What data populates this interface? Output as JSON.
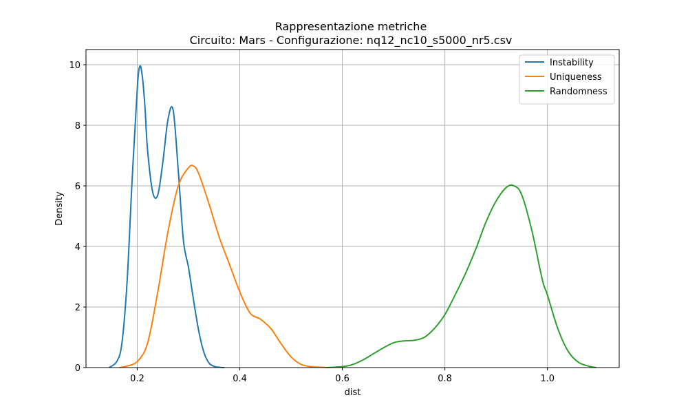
{
  "chart_data": {
    "type": "line",
    "title": "Rappresentazione metriche",
    "subtitle": "Circuito: Mars - Configurazione: nq12_nc10_s5000_nr5.csv",
    "xlabel": "dist",
    "ylabel": "Density",
    "xlim": [
      0.1,
      1.14
    ],
    "ylim": [
      0,
      10.5
    ],
    "xticks": [
      0.2,
      0.4,
      0.6,
      0.8,
      1.0
    ],
    "xtick_labels": [
      "0.2",
      "0.4",
      "0.6",
      "0.8",
      "1.0"
    ],
    "yticks": [
      0,
      2,
      4,
      6,
      8,
      10
    ],
    "ytick_labels": [
      "0",
      "2",
      "4",
      "6",
      "8",
      "10"
    ],
    "grid": true,
    "legend_position": "top-right",
    "series": [
      {
        "name": "Instability",
        "color": "#1f77b4",
        "x": [
          0.145,
          0.16,
          0.17,
          0.18,
          0.19,
          0.2,
          0.205,
          0.21,
          0.215,
          0.22,
          0.23,
          0.24,
          0.25,
          0.26,
          0.27,
          0.28,
          0.29,
          0.3,
          0.31,
          0.32,
          0.33,
          0.34,
          0.35,
          0.36,
          0.37
        ],
        "y": [
          0.0,
          0.2,
          0.8,
          2.8,
          6.2,
          9.2,
          9.95,
          9.6,
          8.6,
          7.2,
          5.8,
          5.7,
          6.8,
          8.2,
          8.5,
          6.5,
          4.2,
          3.3,
          2.2,
          1.2,
          0.5,
          0.15,
          0.04,
          0.01,
          0.0
        ]
      },
      {
        "name": "Uniqueness",
        "color": "#ff7f0e",
        "x": [
          0.165,
          0.18,
          0.2,
          0.22,
          0.24,
          0.26,
          0.28,
          0.3,
          0.31,
          0.32,
          0.34,
          0.36,
          0.38,
          0.4,
          0.42,
          0.44,
          0.46,
          0.48,
          0.5,
          0.52,
          0.54,
          0.56,
          0.57
        ],
        "y": [
          0.0,
          0.05,
          0.2,
          0.8,
          2.5,
          4.5,
          6.0,
          6.6,
          6.65,
          6.4,
          5.4,
          4.3,
          3.4,
          2.5,
          1.8,
          1.6,
          1.3,
          0.8,
          0.35,
          0.1,
          0.03,
          0.01,
          0.0
        ]
      },
      {
        "name": "Randomness",
        "color": "#2ca02c",
        "x": [
          0.57,
          0.6,
          0.62,
          0.64,
          0.66,
          0.68,
          0.7,
          0.72,
          0.74,
          0.76,
          0.78,
          0.8,
          0.82,
          0.84,
          0.86,
          0.88,
          0.9,
          0.92,
          0.935,
          0.95,
          0.97,
          0.99,
          1.0,
          1.02,
          1.04,
          1.06,
          1.08,
          1.095
        ],
        "y": [
          0.0,
          0.03,
          0.1,
          0.25,
          0.45,
          0.65,
          0.82,
          0.88,
          0.9,
          1.0,
          1.3,
          1.75,
          2.4,
          3.1,
          3.9,
          4.8,
          5.5,
          5.95,
          6.0,
          5.7,
          4.5,
          2.9,
          2.4,
          1.3,
          0.55,
          0.18,
          0.05,
          0.0
        ]
      }
    ]
  }
}
